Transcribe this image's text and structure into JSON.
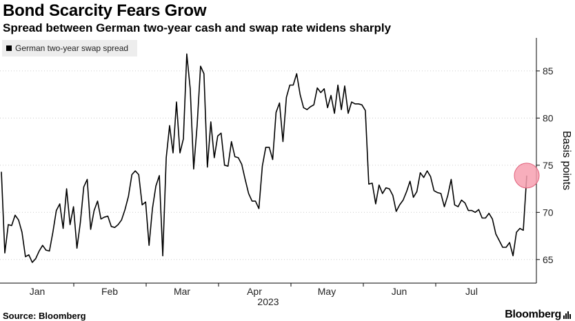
{
  "header": {
    "title": "Bond Scarcity Fears Grow",
    "subtitle": "Spread between German two-year cash and swap rate widens sharply"
  },
  "footer": {
    "source": "Source: Bloomberg",
    "brand": "Bloomberg"
  },
  "colors": {
    "line": "#000000",
    "highlight": "#f7a0b0",
    "highlight_stroke": "#e0607a",
    "grid": "#cccccc"
  },
  "chart_data": {
    "type": "line",
    "title": "Bond Scarcity Fears Grow",
    "subtitle": "Spread between German two-year cash and swap rate widens sharply",
    "xlabel": "2023",
    "ylabel": "Basis points",
    "ylim": [
      62.5,
      88.5
    ],
    "yticks": [
      65,
      70,
      75,
      80,
      85
    ],
    "ytick_labels": [
      "65",
      "70",
      "75",
      "80",
      "85"
    ],
    "x_tick_labels": [
      "Jan",
      "Feb",
      "Mar",
      "Apr",
      "May",
      "Jun",
      "Jul"
    ],
    "x_label_year": "2023",
    "legend": "German two-year swap spread",
    "legend_position": "top-left",
    "grid": "horizontal-dotted",
    "annotation": "circle marking latest value",
    "series": [
      {
        "name": "German two-year swap spread",
        "values": [
          74.3,
          65.7,
          68.7,
          68.6,
          69.7,
          69.2,
          67.9,
          65.3,
          65.5,
          64.7,
          65.1,
          65.9,
          66.5,
          66.0,
          65.9,
          67.9,
          70.2,
          70.9,
          68.3,
          72.5,
          68.7,
          70.6,
          66.2,
          68.9,
          72.7,
          73.5,
          68.2,
          70.2,
          71.2,
          69.3,
          69.5,
          69.6,
          68.5,
          68.4,
          68.7,
          69.2,
          70.3,
          71.7,
          74.0,
          74.4,
          74.0,
          70.8,
          71.1,
          66.5,
          70.4,
          72.8,
          73.9,
          65.4,
          75.8,
          79.2,
          76.3,
          81.7,
          76.3,
          77.8,
          86.8,
          83.1,
          74.6,
          79.2,
          85.5,
          84.7,
          74.8,
          79.6,
          75.8,
          78.1,
          78.4,
          75.0,
          74.9,
          77.5,
          75.9,
          75.8,
          75.1,
          73.5,
          72.0,
          71.2,
          71.2,
          70.4,
          74.9,
          76.9,
          76.9,
          75.6,
          80.6,
          81.6,
          77.5,
          82.2,
          83.5,
          83.5,
          84.7,
          82.5,
          81.1,
          80.9,
          81.2,
          81.4,
          83.2,
          82.7,
          83.1,
          81.1,
          82.4,
          80.5,
          83.5,
          80.9,
          83.4,
          80.5,
          81.7,
          81.5,
          81.5,
          81.4,
          80.8,
          73.0,
          73.1,
          70.9,
          72.9,
          72.0,
          72.6,
          72.5,
          71.8,
          70.1,
          70.8,
          71.3,
          72.2,
          73.3,
          71.6,
          72.2,
          74.2,
          73.7,
          74.4,
          73.8,
          72.3,
          72.1,
          72.0,
          70.6,
          71.8,
          73.5,
          70.8,
          70.6,
          71.3,
          71.0,
          70.2,
          70.2,
          70.0,
          70.3,
          69.4,
          69.4,
          69.9,
          69.3,
          67.7,
          67.0,
          66.3,
          66.3,
          66.8,
          65.4,
          67.9,
          68.3,
          68.1,
          73.9
        ]
      }
    ],
    "highlight_value": 73.9
  }
}
